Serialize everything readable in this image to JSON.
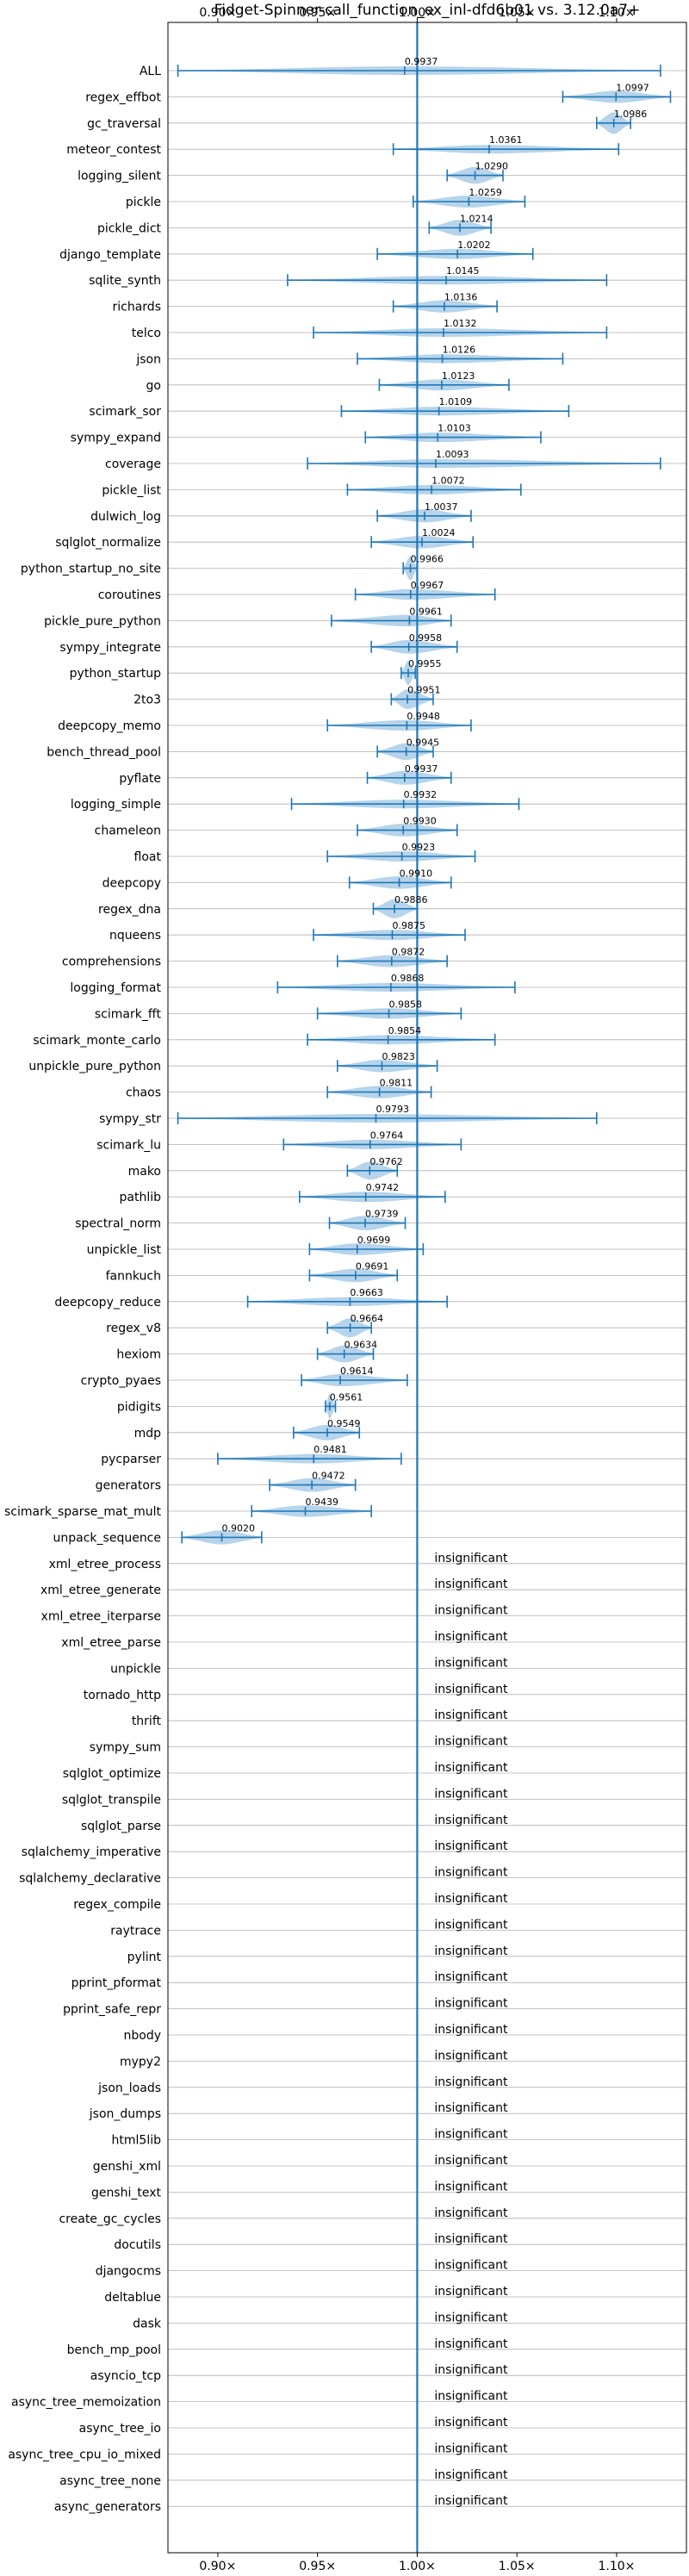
{
  "chart_data": {
    "type": "violin",
    "title": "Fidget-Spinner-call_function_ex_inl-dfd6b01 vs. 3.12.0a7+",
    "xlim": [
      0.875,
      1.135
    ],
    "xticks": [
      0.9,
      0.95,
      1.0,
      1.05,
      1.1
    ],
    "xtick_labels": [
      "0.90×",
      "0.95×",
      "1.00×",
      "1.05×",
      "1.10×"
    ],
    "reference_x": 1.0,
    "grid": "horizontal",
    "violin_color": "#a9cce8",
    "line_color": "#1f77b4",
    "insignificant_label": "insignificant",
    "benchmarks": [
      {
        "name": "ALL",
        "value": 0.9937,
        "min": 0.88,
        "max": 1.122
      },
      {
        "name": "regex_effbot",
        "value": 1.0997,
        "min": 1.073,
        "max": 1.127
      },
      {
        "name": "gc_traversal",
        "value": 1.0986,
        "min": 1.09,
        "max": 1.107
      },
      {
        "name": "meteor_contest",
        "value": 1.0361,
        "min": 0.988,
        "max": 1.101
      },
      {
        "name": "logging_silent",
        "value": 1.029,
        "min": 1.015,
        "max": 1.043
      },
      {
        "name": "pickle",
        "value": 1.0259,
        "min": 0.998,
        "max": 1.054
      },
      {
        "name": "pickle_dict",
        "value": 1.0214,
        "min": 1.006,
        "max": 1.037
      },
      {
        "name": "django_template",
        "value": 1.0202,
        "min": 0.98,
        "max": 1.058
      },
      {
        "name": "sqlite_synth",
        "value": 1.0145,
        "min": 0.935,
        "max": 1.095
      },
      {
        "name": "richards",
        "value": 1.0136,
        "min": 0.988,
        "max": 1.04
      },
      {
        "name": "telco",
        "value": 1.0132,
        "min": 0.948,
        "max": 1.095
      },
      {
        "name": "json",
        "value": 1.0126,
        "min": 0.97,
        "max": 1.073
      },
      {
        "name": "go",
        "value": 1.0123,
        "min": 0.981,
        "max": 1.046
      },
      {
        "name": "scimark_sor",
        "value": 1.0109,
        "min": 0.962,
        "max": 1.076
      },
      {
        "name": "sympy_expand",
        "value": 1.0103,
        "min": 0.974,
        "max": 1.062
      },
      {
        "name": "coverage",
        "value": 1.0093,
        "min": 0.945,
        "max": 1.122
      },
      {
        "name": "pickle_list",
        "value": 1.0072,
        "min": 0.965,
        "max": 1.052
      },
      {
        "name": "dulwich_log",
        "value": 1.0037,
        "min": 0.98,
        "max": 1.027
      },
      {
        "name": "sqlglot_normalize",
        "value": 1.0024,
        "min": 0.977,
        "max": 1.028
      },
      {
        "name": "python_startup_no_site",
        "value": 0.9966,
        "min": 0.993,
        "max": 1.0
      },
      {
        "name": "coroutines",
        "value": 0.9967,
        "min": 0.969,
        "max": 1.039
      },
      {
        "name": "pickle_pure_python",
        "value": 0.9961,
        "min": 0.957,
        "max": 1.017
      },
      {
        "name": "sympy_integrate",
        "value": 0.9958,
        "min": 0.977,
        "max": 1.02
      },
      {
        "name": "python_startup",
        "value": 0.9955,
        "min": 0.992,
        "max": 0.999
      },
      {
        "name": "2to3",
        "value": 0.9951,
        "min": 0.987,
        "max": 1.008
      },
      {
        "name": "deepcopy_memo",
        "value": 0.9948,
        "min": 0.955,
        "max": 1.027
      },
      {
        "name": "bench_thread_pool",
        "value": 0.9945,
        "min": 0.98,
        "max": 1.008
      },
      {
        "name": "pyflate",
        "value": 0.9937,
        "min": 0.975,
        "max": 1.017
      },
      {
        "name": "logging_simple",
        "value": 0.9932,
        "min": 0.937,
        "max": 1.051
      },
      {
        "name": "chameleon",
        "value": 0.993,
        "min": 0.97,
        "max": 1.02
      },
      {
        "name": "float",
        "value": 0.9923,
        "min": 0.955,
        "max": 1.029
      },
      {
        "name": "deepcopy",
        "value": 0.991,
        "min": 0.966,
        "max": 1.017
      },
      {
        "name": "regex_dna",
        "value": 0.9886,
        "min": 0.978,
        "max": 1.0
      },
      {
        "name": "nqueens",
        "value": 0.9875,
        "min": 0.948,
        "max": 1.024
      },
      {
        "name": "comprehensions",
        "value": 0.9872,
        "min": 0.96,
        "max": 1.015
      },
      {
        "name": "logging_format",
        "value": 0.9868,
        "min": 0.93,
        "max": 1.049
      },
      {
        "name": "scimark_fft",
        "value": 0.9858,
        "min": 0.95,
        "max": 1.022
      },
      {
        "name": "scimark_monte_carlo",
        "value": 0.9854,
        "min": 0.945,
        "max": 1.039
      },
      {
        "name": "unpickle_pure_python",
        "value": 0.9823,
        "min": 0.96,
        "max": 1.01
      },
      {
        "name": "chaos",
        "value": 0.9811,
        "min": 0.955,
        "max": 1.007
      },
      {
        "name": "sympy_str",
        "value": 0.9793,
        "min": 0.88,
        "max": 1.09
      },
      {
        "name": "scimark_lu",
        "value": 0.9764,
        "min": 0.933,
        "max": 1.022
      },
      {
        "name": "mako",
        "value": 0.9762,
        "min": 0.965,
        "max": 0.99
      },
      {
        "name": "pathlib",
        "value": 0.9742,
        "min": 0.941,
        "max": 1.014
      },
      {
        "name": "spectral_norm",
        "value": 0.9739,
        "min": 0.956,
        "max": 0.994
      },
      {
        "name": "unpickle_list",
        "value": 0.9699,
        "min": 0.946,
        "max": 1.003
      },
      {
        "name": "fannkuch",
        "value": 0.9691,
        "min": 0.946,
        "max": 0.99
      },
      {
        "name": "deepcopy_reduce",
        "value": 0.9663,
        "min": 0.915,
        "max": 1.015
      },
      {
        "name": "regex_v8",
        "value": 0.9664,
        "min": 0.955,
        "max": 0.977
      },
      {
        "name": "hexiom",
        "value": 0.9634,
        "min": 0.95,
        "max": 0.978
      },
      {
        "name": "crypto_pyaes",
        "value": 0.9614,
        "min": 0.942,
        "max": 0.995
      },
      {
        "name": "pidigits",
        "value": 0.9561,
        "min": 0.954,
        "max": 0.959
      },
      {
        "name": "mdp",
        "value": 0.9549,
        "min": 0.938,
        "max": 0.971
      },
      {
        "name": "pycparser",
        "value": 0.9481,
        "min": 0.9,
        "max": 0.992
      },
      {
        "name": "generators",
        "value": 0.9472,
        "min": 0.926,
        "max": 0.969
      },
      {
        "name": "scimark_sparse_mat_mult",
        "value": 0.9439,
        "min": 0.917,
        "max": 0.977
      },
      {
        "name": "unpack_sequence",
        "value": 0.902,
        "min": 0.882,
        "max": 0.922
      }
    ],
    "insignificant": [
      "xml_etree_process",
      "xml_etree_generate",
      "xml_etree_iterparse",
      "xml_etree_parse",
      "unpickle",
      "tornado_http",
      "thrift",
      "sympy_sum",
      "sqlglot_optimize",
      "sqlglot_transpile",
      "sqlglot_parse",
      "sqlalchemy_imperative",
      "sqlalchemy_declarative",
      "regex_compile",
      "raytrace",
      "pylint",
      "pprint_pformat",
      "pprint_safe_repr",
      "nbody",
      "mypy2",
      "json_loads",
      "json_dumps",
      "html5lib",
      "genshi_xml",
      "genshi_text",
      "create_gc_cycles",
      "docutils",
      "djangocms",
      "deltablue",
      "dask",
      "bench_mp_pool",
      "asyncio_tcp",
      "async_tree_memoization",
      "async_tree_io",
      "async_tree_cpu_io_mixed",
      "async_tree_none",
      "async_generators"
    ]
  }
}
